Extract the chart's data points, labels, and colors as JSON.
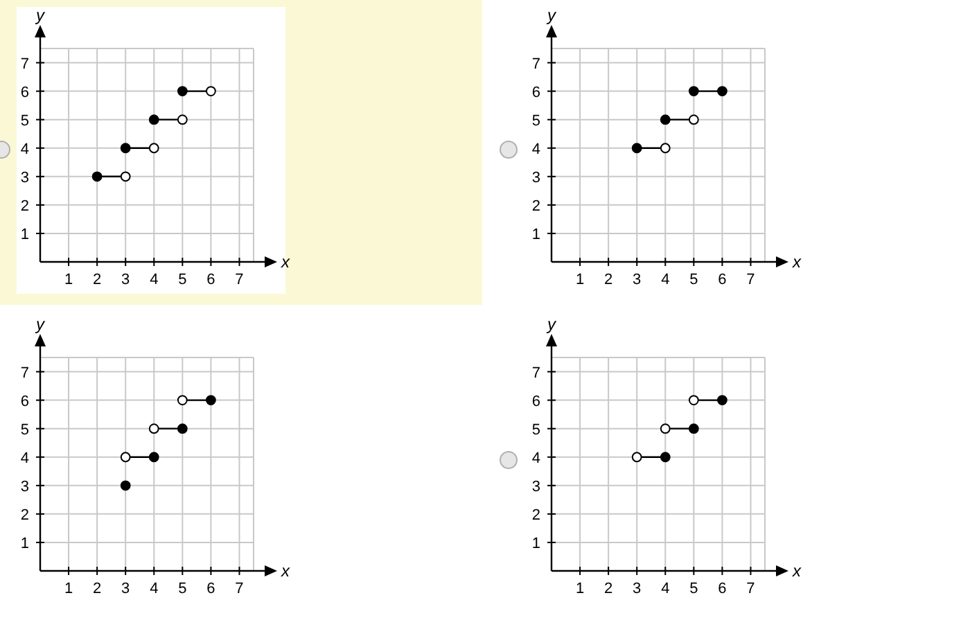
{
  "chart_data": [
    {
      "type": "line",
      "xlabel": "x",
      "ylabel": "y",
      "xlim": [
        0,
        7.5
      ],
      "ylim": [
        0,
        7.5
      ],
      "xticks": [
        1,
        2,
        3,
        4,
        5,
        6,
        7
      ],
      "yticks": [
        1,
        2,
        3,
        4,
        5,
        6,
        7
      ],
      "grid": true,
      "series": [
        {
          "color": "#000000",
          "x": [
            2,
            3
          ],
          "values": [
            3,
            3
          ]
        },
        {
          "color": "#000000",
          "x": [
            3,
            4
          ],
          "values": [
            4,
            4
          ]
        },
        {
          "color": "#000000",
          "x": [
            4,
            5
          ],
          "values": [
            5,
            5
          ]
        },
        {
          "color": "#000000",
          "x": [
            5,
            6
          ],
          "values": [
            6,
            6
          ]
        },
        {
          "type": "scatter",
          "marker": "circle",
          "color": "#000000",
          "x": [
            2,
            3,
            4,
            5
          ],
          "values": [
            3,
            4,
            5,
            6
          ]
        },
        {
          "type": "scatter",
          "marker": "circle",
          "color": "#ffffff",
          "x": [
            3,
            4,
            5,
            6
          ],
          "values": [
            3,
            4,
            5,
            6
          ]
        }
      ]
    },
    {
      "type": "line",
      "xlabel": "x",
      "ylabel": "y",
      "xlim": [
        0,
        7.5
      ],
      "ylim": [
        0,
        7.5
      ],
      "xticks": [
        1,
        2,
        3,
        4,
        5,
        6,
        7
      ],
      "yticks": [
        1,
        2,
        3,
        4,
        5,
        6,
        7
      ],
      "grid": true,
      "series": [
        {
          "color": "#000000",
          "x": [
            3,
            4
          ],
          "values": [
            4,
            4
          ]
        },
        {
          "color": "#000000",
          "x": [
            4,
            5
          ],
          "values": [
            5,
            5
          ]
        },
        {
          "color": "#000000",
          "x": [
            5,
            6
          ],
          "values": [
            6,
            6
          ]
        },
        {
          "type": "scatter",
          "marker": "circle",
          "color": "#000000",
          "x": [
            3,
            4,
            5,
            6
          ],
          "values": [
            4,
            5,
            6,
            6
          ]
        },
        {
          "type": "scatter",
          "marker": "circle",
          "color": "#ffffff",
          "x": [
            4,
            5
          ],
          "values": [
            4,
            5
          ]
        }
      ]
    },
    {
      "type": "line",
      "xlabel": "x",
      "ylabel": "y",
      "xlim": [
        0,
        7.5
      ],
      "ylim": [
        0,
        7.5
      ],
      "xticks": [
        1,
        2,
        3,
        4,
        5,
        6,
        7
      ],
      "yticks": [
        1,
        2,
        3,
        4,
        5,
        6,
        7
      ],
      "grid": true,
      "series": [
        {
          "color": "#000000",
          "x": [
            3,
            4
          ],
          "values": [
            4,
            4
          ]
        },
        {
          "color": "#000000",
          "x": [
            4,
            5
          ],
          "values": [
            5,
            5
          ]
        },
        {
          "color": "#000000",
          "x": [
            5,
            6
          ],
          "values": [
            6,
            6
          ]
        },
        {
          "type": "scatter",
          "marker": "circle",
          "color": "#000000",
          "x": [
            3,
            4,
            5,
            6
          ],
          "values": [
            3,
            4,
            5,
            6
          ]
        },
        {
          "type": "scatter",
          "marker": "circle",
          "color": "#ffffff",
          "x": [
            3,
            4,
            5
          ],
          "values": [
            4,
            5,
            6
          ]
        }
      ]
    },
    {
      "type": "line",
      "xlabel": "x",
      "ylabel": "y",
      "xlim": [
        0,
        7.5
      ],
      "ylim": [
        0,
        7.5
      ],
      "xticks": [
        1,
        2,
        3,
        4,
        5,
        6,
        7
      ],
      "yticks": [
        1,
        2,
        3,
        4,
        5,
        6,
        7
      ],
      "grid": true,
      "series": [
        {
          "color": "#000000",
          "x": [
            3,
            4
          ],
          "values": [
            4,
            4
          ]
        },
        {
          "color": "#000000",
          "x": [
            4,
            5
          ],
          "values": [
            5,
            5
          ]
        },
        {
          "color": "#000000",
          "x": [
            5,
            6
          ],
          "values": [
            6,
            6
          ]
        },
        {
          "type": "scatter",
          "marker": "circle",
          "color": "#000000",
          "x": [
            4,
            5,
            6
          ],
          "values": [
            4,
            5,
            6
          ]
        },
        {
          "type": "scatter",
          "marker": "circle",
          "color": "#ffffff",
          "x": [
            3,
            4,
            5
          ],
          "values": [
            4,
            5,
            6
          ]
        }
      ]
    }
  ]
}
